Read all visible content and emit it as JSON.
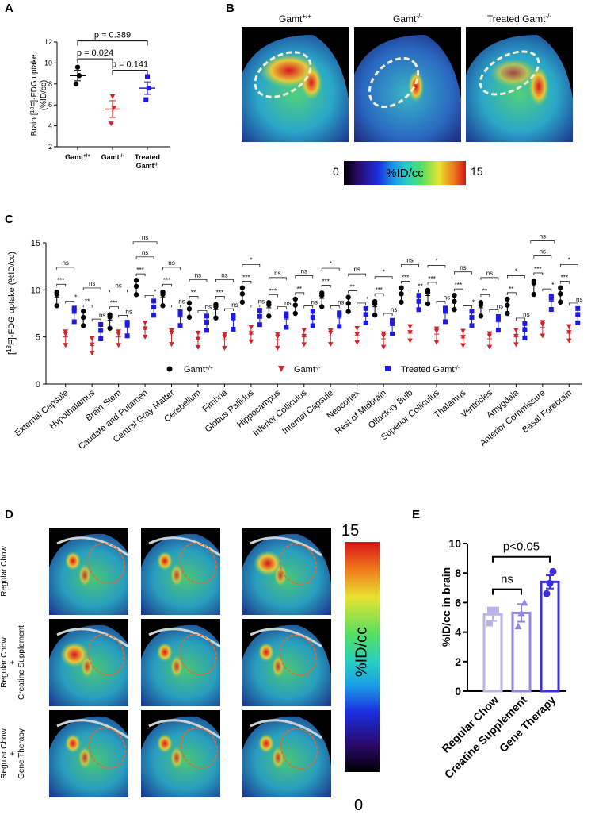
{
  "panels": {
    "a": "A",
    "b": "B",
    "c": "C",
    "d": "D",
    "e": "E"
  },
  "colors": {
    "wt": "#000000",
    "ko": "#d0242a",
    "treated": "#1f1ae0",
    "barLight": "#b9b3ea",
    "barMid": "#8f86e6",
    "barDark": "#3a2ee0"
  },
  "panelA": {
    "ylabel_part1": "Brain [",
    "ylabel_sup": "18",
    "ylabel_part2": "F]-FDG uptake",
    "ylabel_line2": "(%ID/cc)",
    "yticks": [
      "2",
      "4",
      "6",
      "8",
      "10",
      "12"
    ],
    "xlabels": [
      {
        "base": "Gamt",
        "sup": "+/+",
        "line2": ""
      },
      {
        "base": "Gamt",
        "sup": "-/-",
        "line2": ""
      },
      {
        "base": "Treated",
        "sup": "",
        "line2": "Gamt"
      }
    ],
    "xlabel3_sup": "-/-",
    "pvals": [
      "p = 0.389",
      "p = 0.024",
      "p = 0.141"
    ]
  },
  "chart_data": [
    {
      "type": "scatter",
      "panel": "A",
      "title": "",
      "ylabel": "Brain [18F]-FDG uptake (%ID/cc)",
      "ylim": [
        2,
        12
      ],
      "categories": [
        "Gamt+/+",
        "Gamt-/-",
        "Treated Gamt-/-"
      ],
      "points": [
        [
          9.6,
          8.0,
          8.8
        ],
        [
          6.8,
          4.2,
          5.7
        ],
        [
          8.7,
          6.5,
          7.6
        ]
      ],
      "mean": [
        8.8,
        5.6,
        7.6
      ],
      "err": [
        0.5,
        0.8,
        0.6
      ],
      "comparisons": [
        {
          "a": 0,
          "b": 2,
          "label": "p = 0.389"
        },
        {
          "a": 0,
          "b": 1,
          "label": "p = 0.024"
        },
        {
          "a": 1,
          "b": 2,
          "label": "p = 0.141"
        }
      ]
    },
    {
      "type": "scatter",
      "panel": "C",
      "ylabel": "[18F]-FDG uptake (%ID/cc)",
      "ylim": [
        0,
        15
      ],
      "regions": [
        "External Capsule",
        "Hypothalamus",
        "Brain Stem",
        "Caudate and Putamen",
        "Central Gray Matter",
        "Cerebellum",
        "Fimbria",
        "Globus Pallidus",
        "Hippocampus",
        "Inferior Colliculus",
        "Internal Capsule",
        "Neocortex",
        "Rest of Midbrain",
        "Olfactory Bulb",
        "Superior Colliculus",
        "Thalamus",
        "Ventricles",
        "Amygdala",
        "Anterior Commissure",
        "Basal Forebrain"
      ],
      "series": [
        {
          "name": "Gamt+/+",
          "values": [
            9.2,
            7.0,
            6.8,
            10.3,
            9.2,
            7.9,
            7.9,
            9.5,
            8.1,
            8.3,
            9.1,
            8.5,
            8.2,
            9.5,
            9.4,
            8.7,
            8.1,
            8.3,
            10.4,
            9.5
          ]
        },
        {
          "name": "Gamt-/-",
          "values": [
            5.0,
            4.1,
            5.0,
            5.8,
            5.1,
            4.7,
            4.7,
            5.3,
            4.7,
            5.0,
            5.1,
            5.2,
            4.8,
            5.4,
            5.3,
            4.9,
            4.8,
            5.0,
            6.0,
            5.4
          ]
        },
        {
          "name": "Treated Gamt-/-",
          "values": [
            7.5,
            5.6,
            6.0,
            8.1,
            7.1,
            6.5,
            6.7,
            7.1,
            6.9,
            7.0,
            7.0,
            7.3,
            6.2,
            8.7,
            7.5,
            7.0,
            6.6,
            5.7,
            8.8,
            7.3
          ]
        }
      ],
      "sig_wt_ko": [
        "***",
        "**",
        "***",
        "***",
        "***",
        "**",
        "***",
        "***",
        "***",
        "**",
        "***",
        "**",
        "***",
        "***",
        "***",
        "***",
        "**",
        "**",
        "***",
        "***"
      ],
      "sig_ko_tr": [
        "*",
        "ns",
        "ns",
        "*",
        "ns",
        "ns",
        "ns",
        "ns",
        "ns",
        "ns",
        "ns",
        "*",
        "ns",
        "**",
        "ns",
        "*",
        "ns",
        "ns",
        "*",
        "ns"
      ],
      "sig_wt_tr": [
        "ns",
        "ns",
        "ns",
        "ns",
        "ns",
        "ns",
        "ns",
        "*",
        "ns",
        "ns",
        "*",
        "ns",
        "*",
        "ns",
        "*",
        "ns",
        "ns",
        "*",
        "ns",
        "*"
      ],
      "sig_top": [
        "",
        "",
        "",
        "ns",
        "",
        "",
        "",
        "",
        "",
        "",
        "",
        "",
        "",
        "",
        "",
        "",
        "",
        "",
        "ns",
        ""
      ],
      "legend": [
        {
          "base": "Gamt",
          "sup": "+/+"
        },
        {
          "base": "Gamt",
          "sup": "-/-"
        },
        {
          "base": "Treated Gamt",
          "sup": "-/-"
        }
      ]
    },
    {
      "type": "bar",
      "panel": "E",
      "ylabel": "%ID/cc in brain",
      "ylim": [
        0,
        10
      ],
      "yticks": [
        0,
        2,
        4,
        6,
        8,
        10
      ],
      "categories": [
        "Regular Chow",
        "Creatine Supplement",
        "Gene Therapy"
      ],
      "values": [
        5.2,
        5.3,
        7.4
      ],
      "err": [
        0.45,
        0.6,
        0.45
      ],
      "points": [
        [
          5.5,
          4.6,
          5.5
        ],
        [
          4.4,
          5.3,
          6.0
        ],
        [
          8.1,
          7.3,
          6.6
        ]
      ],
      "comparisons": [
        {
          "a": 0,
          "b": 1,
          "label": "ns"
        },
        {
          "a": 0,
          "b": 2,
          "label": "p<0.05"
        }
      ]
    }
  ],
  "panelB": {
    "labels": [
      {
        "base": "Gamt",
        "sup": "+/+"
      },
      {
        "base": "Gamt",
        "sup": "-/-"
      },
      {
        "base": "Treated Gamt",
        "sup": "-/-"
      }
    ],
    "cbar_min": "0",
    "cbar_max": "15",
    "cbar_label": "%ID/cc"
  },
  "panelC": {
    "ylabel_part1": "[",
    "ylabel_sup": "18",
    "ylabel_part2": "F]-FDG uptake (%ID/cc)",
    "yticks": [
      "0",
      "5",
      "10",
      "15"
    ]
  },
  "panelD": {
    "rows": [
      {
        "line1": "Regular Chow",
        "line2": "",
        "line3": "",
        "line4": ""
      },
      {
        "line1": "Regular Chow",
        "line2": "+",
        "line3": "Creatine Supplement",
        "line4": ""
      },
      {
        "line1": "Regular Chow",
        "line2": "+",
        "line3": "Gene Therapy",
        "line4": ""
      }
    ],
    "cbar_max": "15",
    "cbar_min": "0",
    "cbar_label": "%ID/cc"
  }
}
